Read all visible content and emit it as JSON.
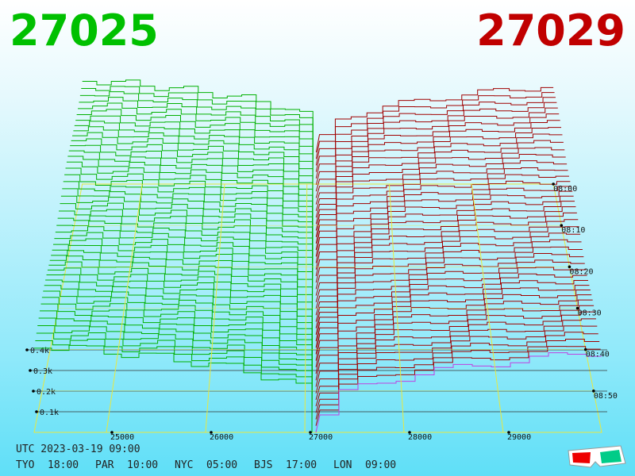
{
  "header": {
    "bid": "27025",
    "ask": "27029"
  },
  "price_axis": {
    "ticks": [
      25000,
      26000,
      27000,
      28000,
      29000
    ]
  },
  "volume_axis": {
    "ticks": [
      {
        "value": 100,
        "label": "0.1k"
      },
      {
        "value": 200,
        "label": "0.2k"
      },
      {
        "value": 300,
        "label": "0.3k"
      },
      {
        "value": 400,
        "label": "0.4k"
      }
    ]
  },
  "time_axis": {
    "ticks": [
      "08:00",
      "08:10",
      "08:20",
      "08:30",
      "08:40",
      "08:50"
    ]
  },
  "footer": {
    "utc": "UTC 2023-03-19 09:00",
    "zones": [
      {
        "city": "TYO",
        "time": "18:00"
      },
      {
        "city": "PAR",
        "time": "10:00"
      },
      {
        "city": "NYC",
        "time": "05:00"
      },
      {
        "city": "BJS",
        "time": "17:00"
      },
      {
        "city": "LON",
        "time": "09:00"
      }
    ]
  }
}
